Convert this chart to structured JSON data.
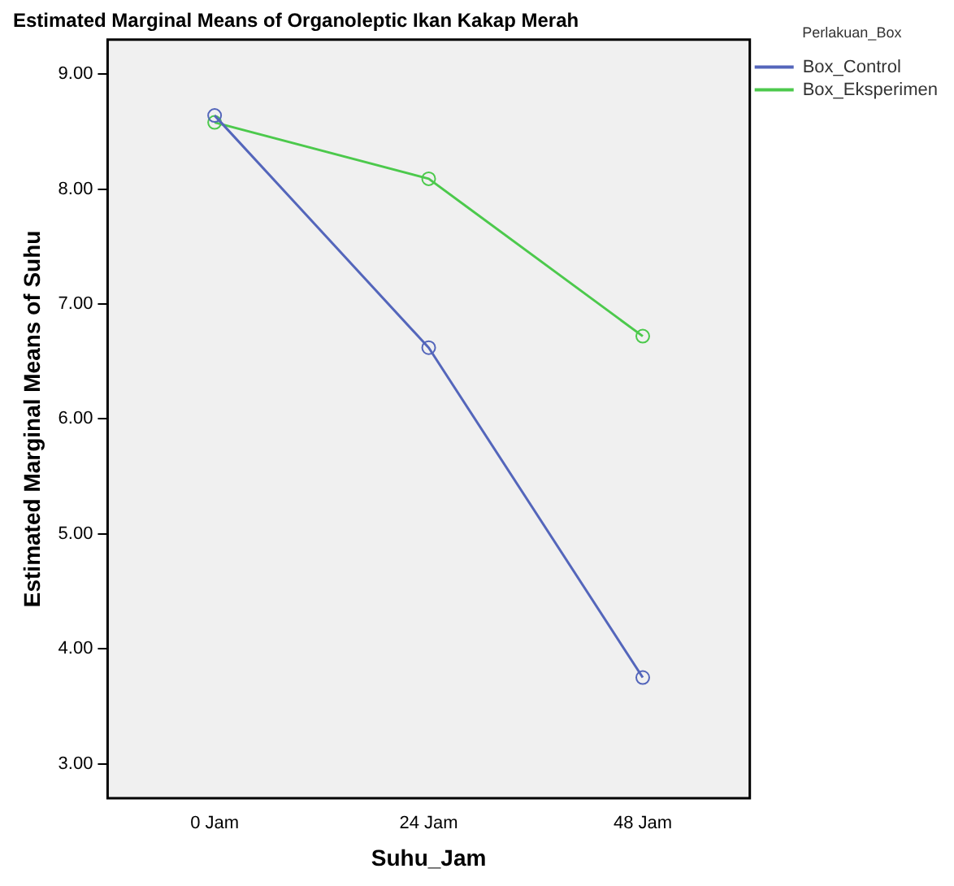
{
  "chart_data": {
    "type": "line",
    "title": "Estimated Marginal Means of Organoleptic Ikan Kakap Merah",
    "xlabel": "Suhu_Jam",
    "ylabel": "Estimated Marginal Means of Suhu",
    "legend_title": "Perlakuan_Box",
    "categories": [
      "0 Jam",
      "24 Jam",
      "48 Jam"
    ],
    "series": [
      {
        "name": "Box_Control",
        "color": "#5466bb",
        "values": [
          8.64,
          6.62,
          3.75
        ]
      },
      {
        "name": "Box_Eksperimen",
        "color": "#4cc94c",
        "values": [
          8.58,
          8.09,
          6.72
        ]
      }
    ],
    "ylim": [
      2.7,
      9.3
    ],
    "yticks": [
      {
        "value": 3,
        "label": "3.00"
      },
      {
        "value": 4,
        "label": "4.00"
      },
      {
        "value": 5,
        "label": "5.00"
      },
      {
        "value": 6,
        "label": "6.00"
      },
      {
        "value": 7,
        "label": "7.00"
      },
      {
        "value": 8,
        "label": "8.00"
      },
      {
        "value": 9,
        "label": "9.00"
      }
    ],
    "grid": false,
    "legend": "right",
    "marker": "circle",
    "line_style": "solid"
  }
}
